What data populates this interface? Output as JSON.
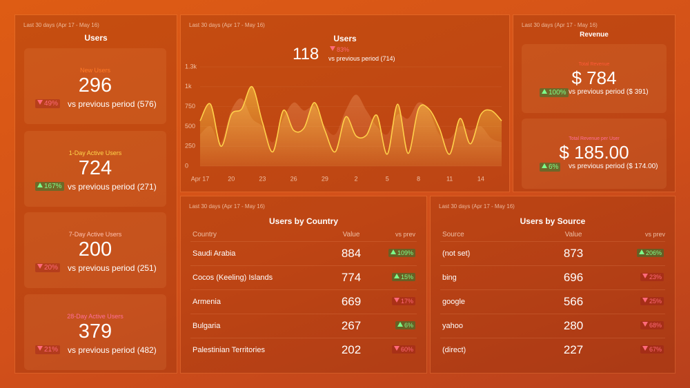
{
  "users_panel": {
    "period": "Last 30 days (Apr 17 - May 16)",
    "title": "Users",
    "metrics": [
      {
        "label": "New Users",
        "value": 296,
        "change": "49%",
        "direction": "down",
        "comparison": "vs previous period (576)",
        "color": "#ff7a2a"
      },
      {
        "label": "1-Day Active Users",
        "value": 724,
        "change": "167%",
        "direction": "up",
        "comparison": "vs previous period (271)",
        "color": "#ffd54a"
      },
      {
        "label": "7-Day Active Users",
        "value": 200,
        "change": "20%",
        "direction": "down",
        "comparison": "vs previous period (251)",
        "color": "#ffc2b0"
      },
      {
        "label": "28-Day Active Users",
        "value": 379,
        "change": "21%",
        "direction": "down",
        "comparison": "vs previous period (482)",
        "color": "#ff6f9a"
      }
    ]
  },
  "users_chart": {
    "period": "Last 30 days (Apr 17 - May 16)",
    "title": "Users",
    "value": 118,
    "change": "83%",
    "direction": "down",
    "comparison": "vs previous period (714)",
    "type": "area",
    "ylim": [
      0,
      1250
    ],
    "yticks": [
      0,
      250,
      500,
      750,
      {
        "value": 1000,
        "label": "1k"
      },
      {
        "value": 1250,
        "label": "1.3k"
      }
    ],
    "categories": [
      "Apr 17",
      null,
      null,
      "20",
      null,
      null,
      "23",
      null,
      null,
      "26",
      null,
      null,
      "29",
      null,
      null,
      "2",
      null,
      null,
      "5",
      null,
      null,
      "8",
      null,
      null,
      "11",
      null,
      null,
      "14",
      null,
      null
    ],
    "series": [
      {
        "name": "current",
        "color": "#ffd04a",
        "values": [
          570,
          780,
          250,
          650,
          720,
          1000,
          550,
          180,
          700,
          450,
          480,
          800,
          450,
          180,
          620,
          380,
          390,
          640,
          150,
          780,
          160,
          720,
          720,
          480,
          150,
          600,
          280,
          650,
          700,
          570
        ]
      },
      {
        "name": "previous",
        "color": "#f2a06a",
        "values": [
          400,
          500,
          300,
          700,
          850,
          600,
          500,
          300,
          600,
          800,
          700,
          750,
          500,
          400,
          700,
          900,
          700,
          500,
          400,
          650,
          600,
          800,
          700,
          400,
          350,
          500,
          450,
          500,
          350,
          300
        ]
      }
    ]
  },
  "revenue_panel": {
    "period": "Last 30 days (Apr 17 - May 16)",
    "title": "Revenue",
    "metrics": [
      {
        "label": "Total Revenue",
        "value": "$ 784",
        "change": "100%",
        "direction": "up",
        "comparison": "vs previous period ($ 391)",
        "color": "#ff5a3a"
      },
      {
        "label": "Total Revenue per User",
        "value": "$ 185.00",
        "change": "6%",
        "direction": "up",
        "comparison": "vs previous period ($ 174.00)",
        "color": "#ff6f9a"
      }
    ]
  },
  "country_table": {
    "period": "Last 30 days (Apr 17 - May 16)",
    "title": "Users by Country",
    "columns": [
      "Country",
      "Value",
      "vs prev"
    ],
    "rows": [
      {
        "name": "Saudi Arabia",
        "value": 884,
        "change": "109%",
        "direction": "up"
      },
      {
        "name": "Cocos (Keeling) Islands",
        "value": 774,
        "change": "15%",
        "direction": "up"
      },
      {
        "name": "Armenia",
        "value": 669,
        "change": "17%",
        "direction": "down"
      },
      {
        "name": "Bulgaria",
        "value": 267,
        "change": "6%",
        "direction": "up"
      },
      {
        "name": "Palestinian Territories",
        "value": 202,
        "change": "60%",
        "direction": "down"
      }
    ]
  },
  "source_table": {
    "period": "Last 30 days (Apr 17 - May 16)",
    "title": "Users by Source",
    "columns": [
      "Source",
      "Value",
      "vs prev"
    ],
    "rows": [
      {
        "name": "(not set)",
        "value": 873,
        "change": "206%",
        "direction": "up"
      },
      {
        "name": "bing",
        "value": 696,
        "change": "23%",
        "direction": "down"
      },
      {
        "name": "google",
        "value": 566,
        "change": "25%",
        "direction": "down"
      },
      {
        "name": "yahoo",
        "value": 280,
        "change": "68%",
        "direction": "down"
      },
      {
        "name": "(direct)",
        "value": 227,
        "change": "67%",
        "direction": "down"
      }
    ]
  }
}
